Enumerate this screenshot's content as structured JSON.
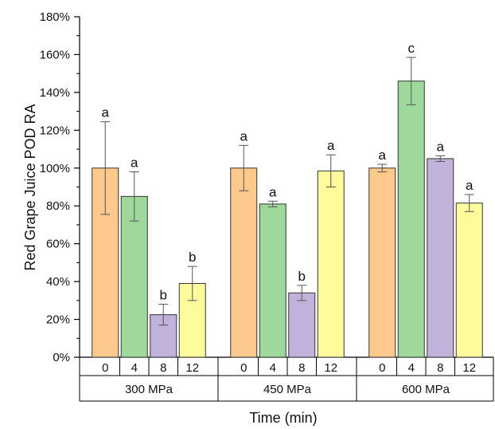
{
  "chart_data": {
    "type": "bar",
    "ylabel": "Red Grape Juice POD RA",
    "xlabel": "Time (min)",
    "ylim": [
      0,
      180
    ],
    "yticks": [
      0,
      20,
      40,
      60,
      80,
      100,
      120,
      140,
      160,
      180
    ],
    "ytick_labels": [
      "0%",
      "20%",
      "40%",
      "60%",
      "80%",
      "100%",
      "120%",
      "140%",
      "160%",
      "180%"
    ],
    "times": [
      "0",
      "4",
      "8",
      "12"
    ],
    "groups": [
      {
        "label": "300 MPa",
        "bars": [
          {
            "time": "0",
            "value": 100,
            "error": 24.5,
            "sig": "a"
          },
          {
            "time": "4",
            "value": 85,
            "error": 13,
            "sig": "a"
          },
          {
            "time": "8",
            "value": 22.5,
            "error": 5.5,
            "sig": "b"
          },
          {
            "time": "12",
            "value": 39,
            "error": 9,
            "sig": "b"
          }
        ]
      },
      {
        "label": "450 MPa",
        "bars": [
          {
            "time": "0",
            "value": 100,
            "error": 12,
            "sig": "a"
          },
          {
            "time": "4",
            "value": 81,
            "error": 1.5,
            "sig": "a"
          },
          {
            "time": "8",
            "value": 34,
            "error": 4,
            "sig": "b"
          },
          {
            "time": "12",
            "value": 98.5,
            "error": 8.5,
            "sig": "a"
          }
        ]
      },
      {
        "label": "600 MPa",
        "bars": [
          {
            "time": "0",
            "value": 100,
            "error": 2,
            "sig": "a"
          },
          {
            "time": "4",
            "value": 146,
            "error": 12.5,
            "sig": "c"
          },
          {
            "time": "8",
            "value": 105,
            "error": 1.5,
            "sig": "a"
          },
          {
            "time": "12",
            "value": 81.5,
            "error": 4.5,
            "sig": "a"
          }
        ]
      }
    ],
    "colors": {
      "0": "#fdc98c",
      "4": "#9fd89b",
      "8": "#c0b2da",
      "12": "#fdfb9b"
    },
    "grid": false,
    "legend": "none"
  }
}
